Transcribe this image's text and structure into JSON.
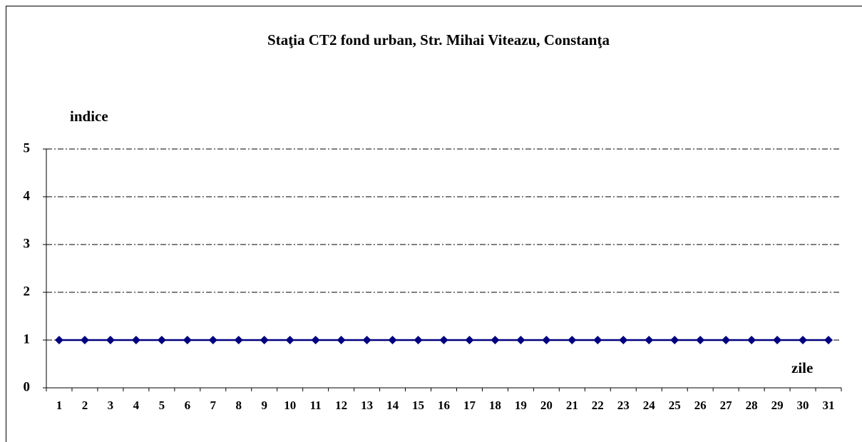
{
  "chart_data": {
    "type": "line",
    "title": "Staţia CT2 fond urban,  Str. Mihai Viteazu, Constanţa",
    "y_label": "indice",
    "x_label": "zile",
    "categories": [
      "1",
      "2",
      "3",
      "4",
      "5",
      "6",
      "7",
      "8",
      "9",
      "10",
      "11",
      "12",
      "13",
      "14",
      "15",
      "16",
      "17",
      "18",
      "19",
      "20",
      "21",
      "22",
      "23",
      "24",
      "25",
      "26",
      "27",
      "28",
      "29",
      "30",
      "31"
    ],
    "series": [
      {
        "color": "#000080",
        "values": [
          1,
          1,
          1,
          1,
          1,
          1,
          1,
          1,
          1,
          1,
          1,
          1,
          1,
          1,
          1,
          1,
          1,
          1,
          1,
          1,
          1,
          1,
          1,
          1,
          1,
          1,
          1,
          1,
          1,
          1,
          1
        ]
      }
    ],
    "ylim": [
      0,
      5
    ],
    "yticks": [
      0,
      1,
      2,
      3,
      4,
      5
    ],
    "grid": true
  }
}
